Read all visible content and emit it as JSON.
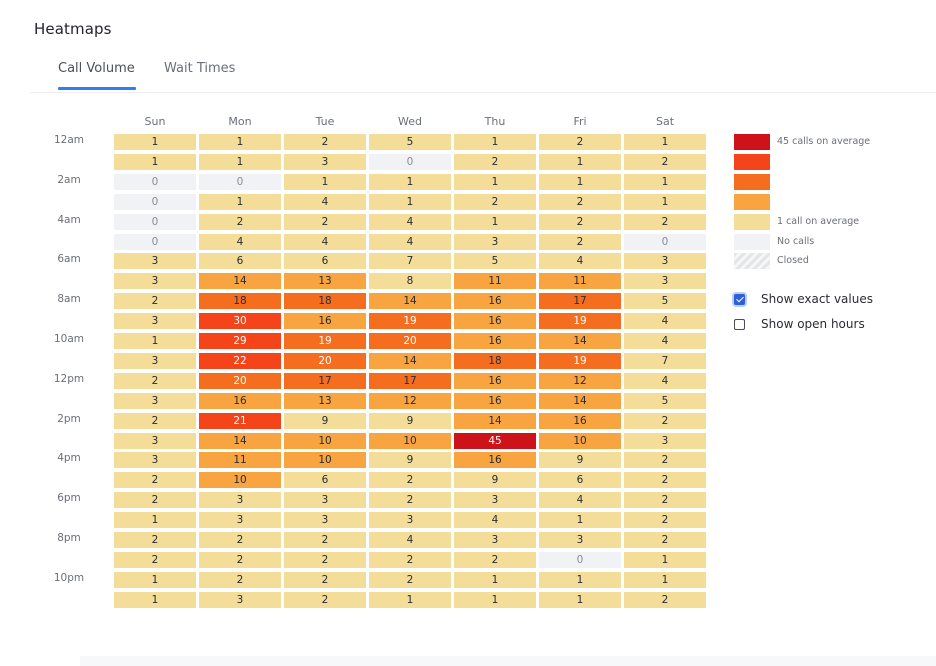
{
  "page": {
    "title": "Heatmaps"
  },
  "tabs": [
    {
      "label": "Call Volume",
      "active": true
    },
    {
      "label": "Wait Times",
      "active": false
    }
  ],
  "chart_data": {
    "type": "heatmap",
    "days": [
      "Sun",
      "Mon",
      "Tue",
      "Wed",
      "Thu",
      "Fri",
      "Sat"
    ],
    "hour_tick_labels": [
      "12am",
      "2am",
      "4am",
      "6am",
      "8am",
      "10am",
      "12pm",
      "2pm",
      "4pm",
      "6pm",
      "8pm",
      "10pm"
    ],
    "values": [
      [
        1,
        1,
        2,
        5,
        1,
        2,
        1
      ],
      [
        1,
        1,
        3,
        0,
        2,
        1,
        2
      ],
      [
        0,
        0,
        1,
        1,
        1,
        1,
        1
      ],
      [
        0,
        1,
        4,
        1,
        2,
        2,
        1
      ],
      [
        0,
        2,
        2,
        4,
        1,
        2,
        2
      ],
      [
        0,
        4,
        4,
        4,
        3,
        2,
        0
      ],
      [
        3,
        6,
        6,
        7,
        5,
        4,
        3
      ],
      [
        3,
        14,
        13,
        8,
        11,
        11,
        3
      ],
      [
        2,
        18,
        18,
        14,
        16,
        17,
        5
      ],
      [
        3,
        30,
        16,
        19,
        16,
        19,
        4
      ],
      [
        1,
        29,
        19,
        20,
        16,
        14,
        4
      ],
      [
        3,
        22,
        20,
        14,
        18,
        19,
        7
      ],
      [
        2,
        20,
        17,
        17,
        16,
        12,
        4
      ],
      [
        3,
        16,
        13,
        12,
        16,
        14,
        5
      ],
      [
        2,
        21,
        9,
        9,
        14,
        16,
        2
      ],
      [
        3,
        14,
        10,
        10,
        45,
        10,
        3
      ],
      [
        3,
        11,
        10,
        9,
        16,
        9,
        2
      ],
      [
        2,
        10,
        6,
        2,
        9,
        6,
        2
      ],
      [
        2,
        3,
        3,
        2,
        3,
        4,
        2
      ],
      [
        1,
        3,
        3,
        3,
        4,
        1,
        2
      ],
      [
        2,
        2,
        2,
        4,
        3,
        3,
        2
      ],
      [
        2,
        2,
        2,
        2,
        2,
        0,
        1
      ],
      [
        1,
        2,
        2,
        2,
        1,
        1,
        1
      ],
      [
        1,
        3,
        2,
        1,
        1,
        1,
        2
      ]
    ],
    "color_scale": {
      "zero": "#f1f2f5",
      "low": "#f3dd98",
      "mid_low": "#f8a441",
      "mid": "#f56e1f",
      "mid_high": "#f5431a",
      "max": "#cd1219"
    },
    "legend": [
      {
        "color": "#cd1219",
        "label": "45 calls on average"
      },
      {
        "color": "#f5431a",
        "label": ""
      },
      {
        "color": "#f56e1f",
        "label": ""
      },
      {
        "color": "#f8a441",
        "label": ""
      },
      {
        "color": "#f3dd98",
        "label": "1 call on average"
      },
      {
        "color": "#f1f2f5",
        "label": "No calls"
      },
      {
        "color": "closed-hatch",
        "label": "Closed"
      }
    ]
  },
  "options": [
    {
      "label": "Show exact values",
      "checked": true
    },
    {
      "label": "Show open hours",
      "checked": false
    }
  ]
}
